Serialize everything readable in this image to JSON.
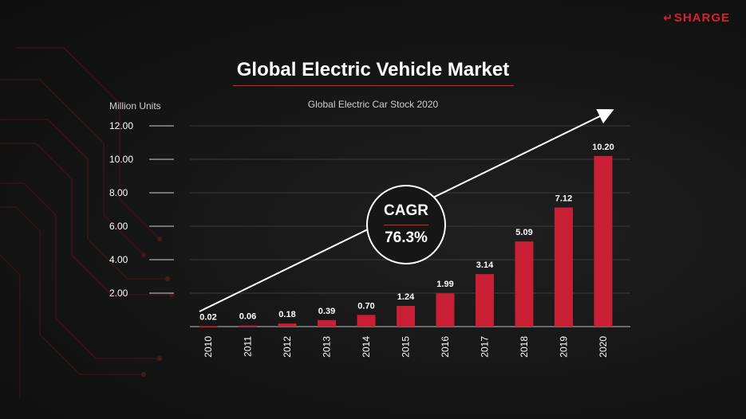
{
  "brand": {
    "name": "SHARGE",
    "arrow": "↵"
  },
  "title": "Global Electric Vehicle Market",
  "cagr": {
    "label": "CAGR",
    "value": "76.3%"
  },
  "colors": {
    "bar": "#c81f35",
    "accent": "#d9202f",
    "background": "#151515"
  },
  "chart_data": {
    "type": "bar",
    "title": "Global Electric Car Stock 2020",
    "ylabel": "Million Units",
    "xlabel": "",
    "categories": [
      "2010",
      "2011",
      "2012",
      "2013",
      "2014",
      "2015",
      "2016",
      "2017",
      "2018",
      "2019",
      "2020"
    ],
    "values": [
      0.02,
      0.06,
      0.18,
      0.39,
      0.7,
      1.24,
      1.99,
      3.14,
      5.09,
      7.12,
      10.2
    ],
    "value_labels": [
      "0.02",
      "0.06",
      "0.18",
      "0.39",
      "0.70",
      "1.24",
      "1.99",
      "3.14",
      "5.09",
      "7.12",
      "10.20"
    ],
    "yticks": [
      "2.00",
      "4.00",
      "6.00",
      "8.00",
      "10.00",
      "12.00"
    ],
    "ylim": [
      0,
      12
    ],
    "grid": true,
    "legend": "none"
  }
}
